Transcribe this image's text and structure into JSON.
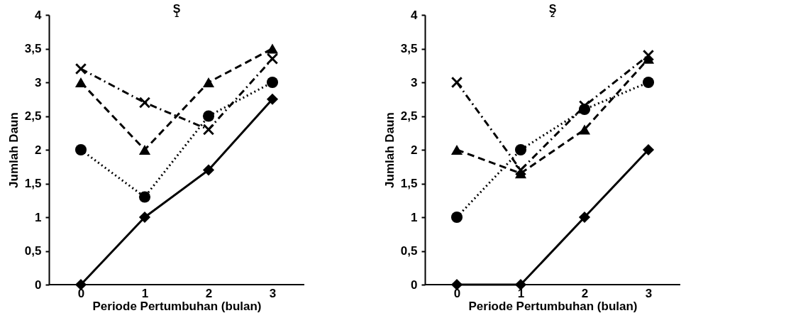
{
  "chart_data": [
    {
      "type": "line",
      "title": "S$_{1}$",
      "xlabel": "Periode Pertumbuhan (bulan)",
      "ylabel": "Jumlah Daun",
      "categories": [
        "0",
        "1",
        "2",
        "3"
      ],
      "ylim": [
        0,
        4
      ],
      "yticks": [
        0,
        {
          "value": 0.5,
          "label": "0,5"
        },
        1,
        {
          "value": 1.5,
          "label": "1,5"
        },
        2,
        {
          "value": 2.5,
          "label": "2,5"
        },
        3,
        {
          "value": 3.5,
          "label": "3,5"
        },
        4
      ],
      "grid": false,
      "series": [
        {
          "color": "#000000",
          "marker": "diamond",
          "line_style": "solid",
          "values": [
            0,
            1,
            1.7,
            2.75
          ]
        },
        {
          "color": "#000000",
          "marker": "circle",
          "line_style": "dotted",
          "values": [
            2,
            1.3,
            2.5,
            3
          ]
        },
        {
          "color": "#000000",
          "marker": "triangle",
          "line_style": "dashed",
          "values": [
            3,
            2,
            3,
            3.5
          ]
        },
        {
          "color": "#000000",
          "marker": "cross",
          "line_style": "dashdot",
          "values": [
            3.2,
            2.7,
            2.3,
            3.35
          ]
        }
      ]
    },
    {
      "type": "line",
      "title": "S$_{2}$",
      "xlabel": "Periode Pertumbuhan (bulan)",
      "ylabel": "Jumlah Daun",
      "categories": [
        "0",
        "1",
        "2",
        "3"
      ],
      "ylim": [
        0,
        4
      ],
      "yticks": [
        0,
        {
          "value": 0.5,
          "label": "0,5"
        },
        1,
        {
          "value": 1.5,
          "label": "1,5"
        },
        2,
        {
          "value": 2.5,
          "label": "2,5"
        },
        3,
        {
          "value": 3.5,
          "label": "3,5"
        },
        4
      ],
      "grid": false,
      "series": [
        {
          "color": "#000000",
          "marker": "diamond",
          "line_style": "solid",
          "values": [
            0,
            0,
            1,
            2
          ]
        },
        {
          "color": "#000000",
          "marker": "circle",
          "line_style": "dotted",
          "values": [
            1,
            2,
            2.6,
            3
          ]
        },
        {
          "color": "#000000",
          "marker": "triangle",
          "line_style": "dashed",
          "values": [
            2,
            1.65,
            2.3,
            3.35
          ]
        },
        {
          "color": "#000000",
          "marker": "cross",
          "line_style": "dashdot",
          "values": [
            3,
            1.7,
            2.65,
            3.4
          ]
        }
      ]
    }
  ]
}
